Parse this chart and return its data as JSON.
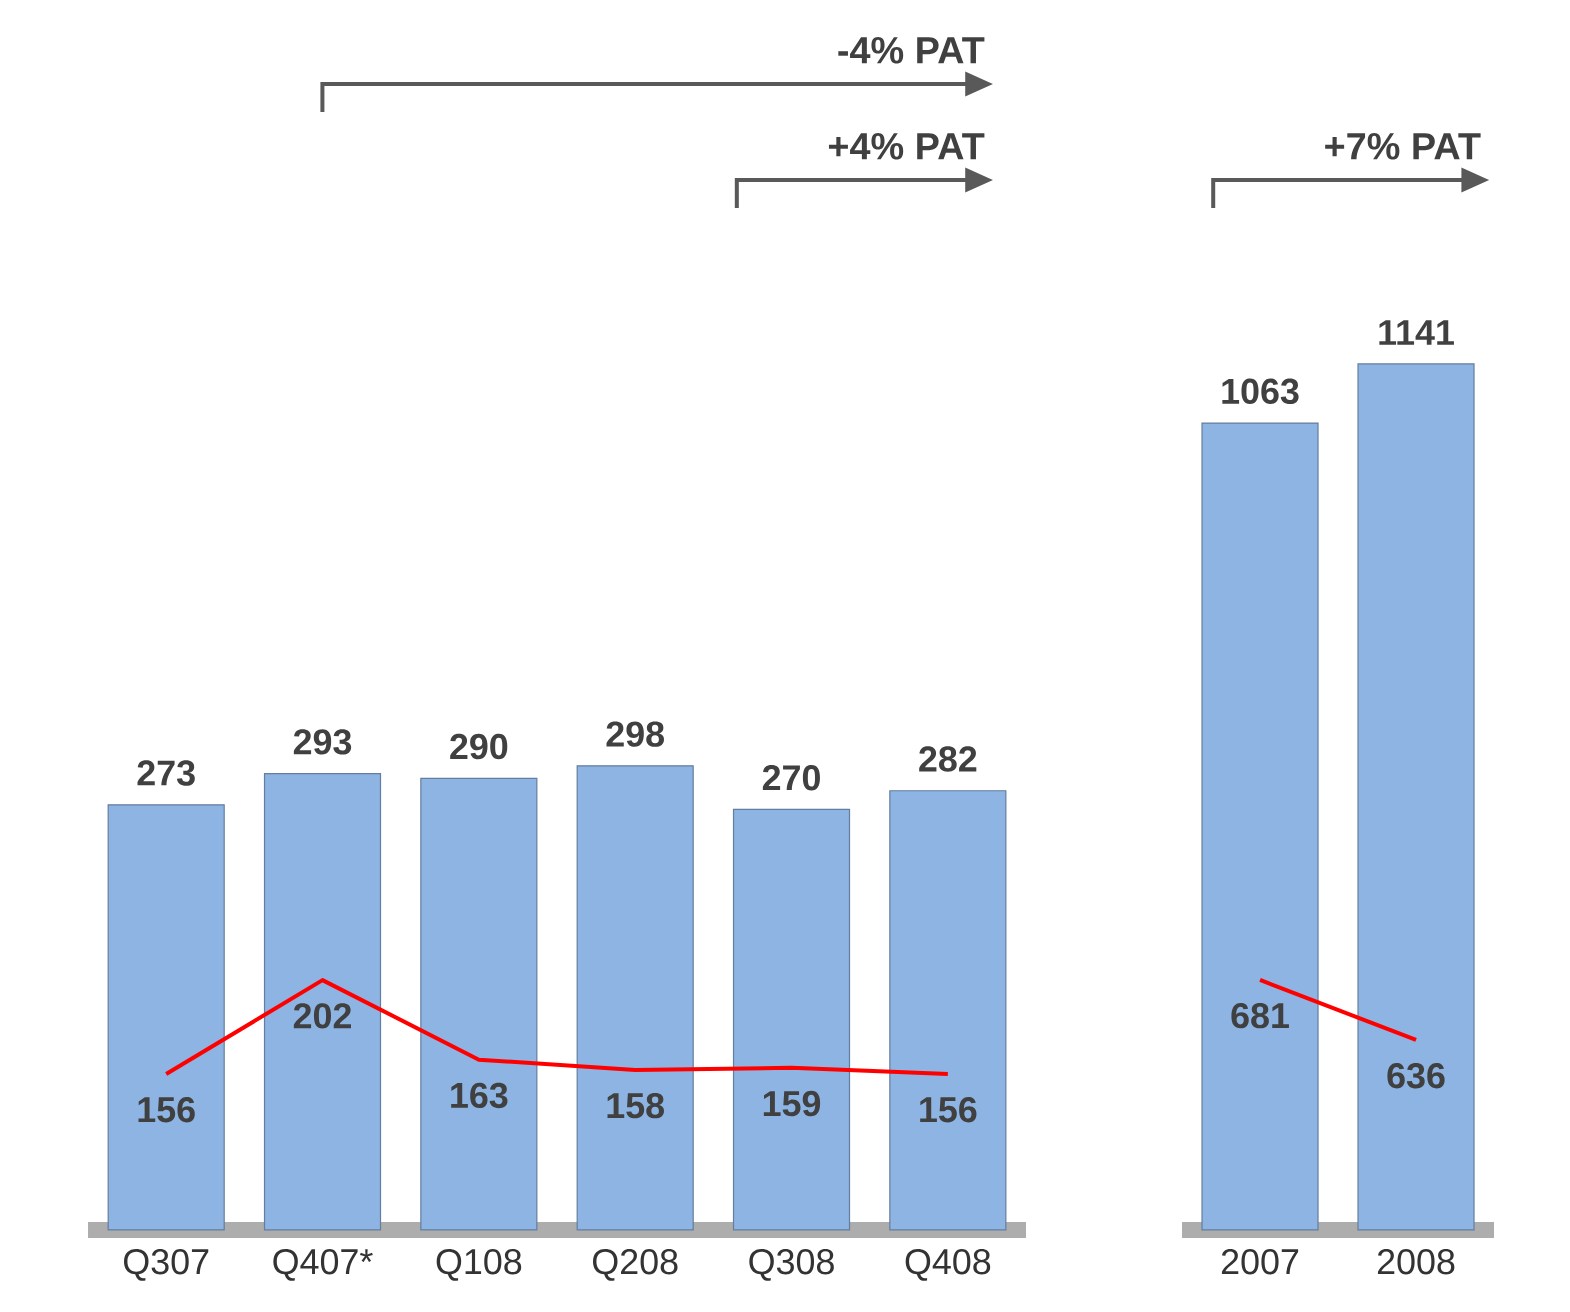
{
  "chart_data": [
    {
      "type": "bar",
      "categories": [
        "Q307",
        "Q407*",
        "Q108",
        "Q208",
        "Q308",
        "Q408"
      ],
      "series": [
        {
          "color": "#8db4e2",
          "values": [
            273,
            293,
            290,
            298,
            270,
            282
          ]
        },
        {
          "type": "line",
          "axis": "y2",
          "color": "#ff0000",
          "values": [
            156,
            202,
            163,
            158,
            159,
            156
          ]
        }
      ],
      "data_labels": true,
      "tick_labels": "x",
      "annotations": [
        "-4% PAT",
        "+4% PAT"
      ]
    },
    {
      "type": "bar",
      "categories": [
        "2007",
        "2008"
      ],
      "series": [
        {
          "color": "#8db4e2",
          "values": [
            1063,
            1141
          ]
        },
        {
          "type": "line",
          "axis": "y2",
          "color": "#ff0000",
          "values": [
            681,
            636
          ]
        }
      ],
      "data_labels": true,
      "tick_labels": "x",
      "annotations": [
        "+7% PAT"
      ]
    }
  ]
}
